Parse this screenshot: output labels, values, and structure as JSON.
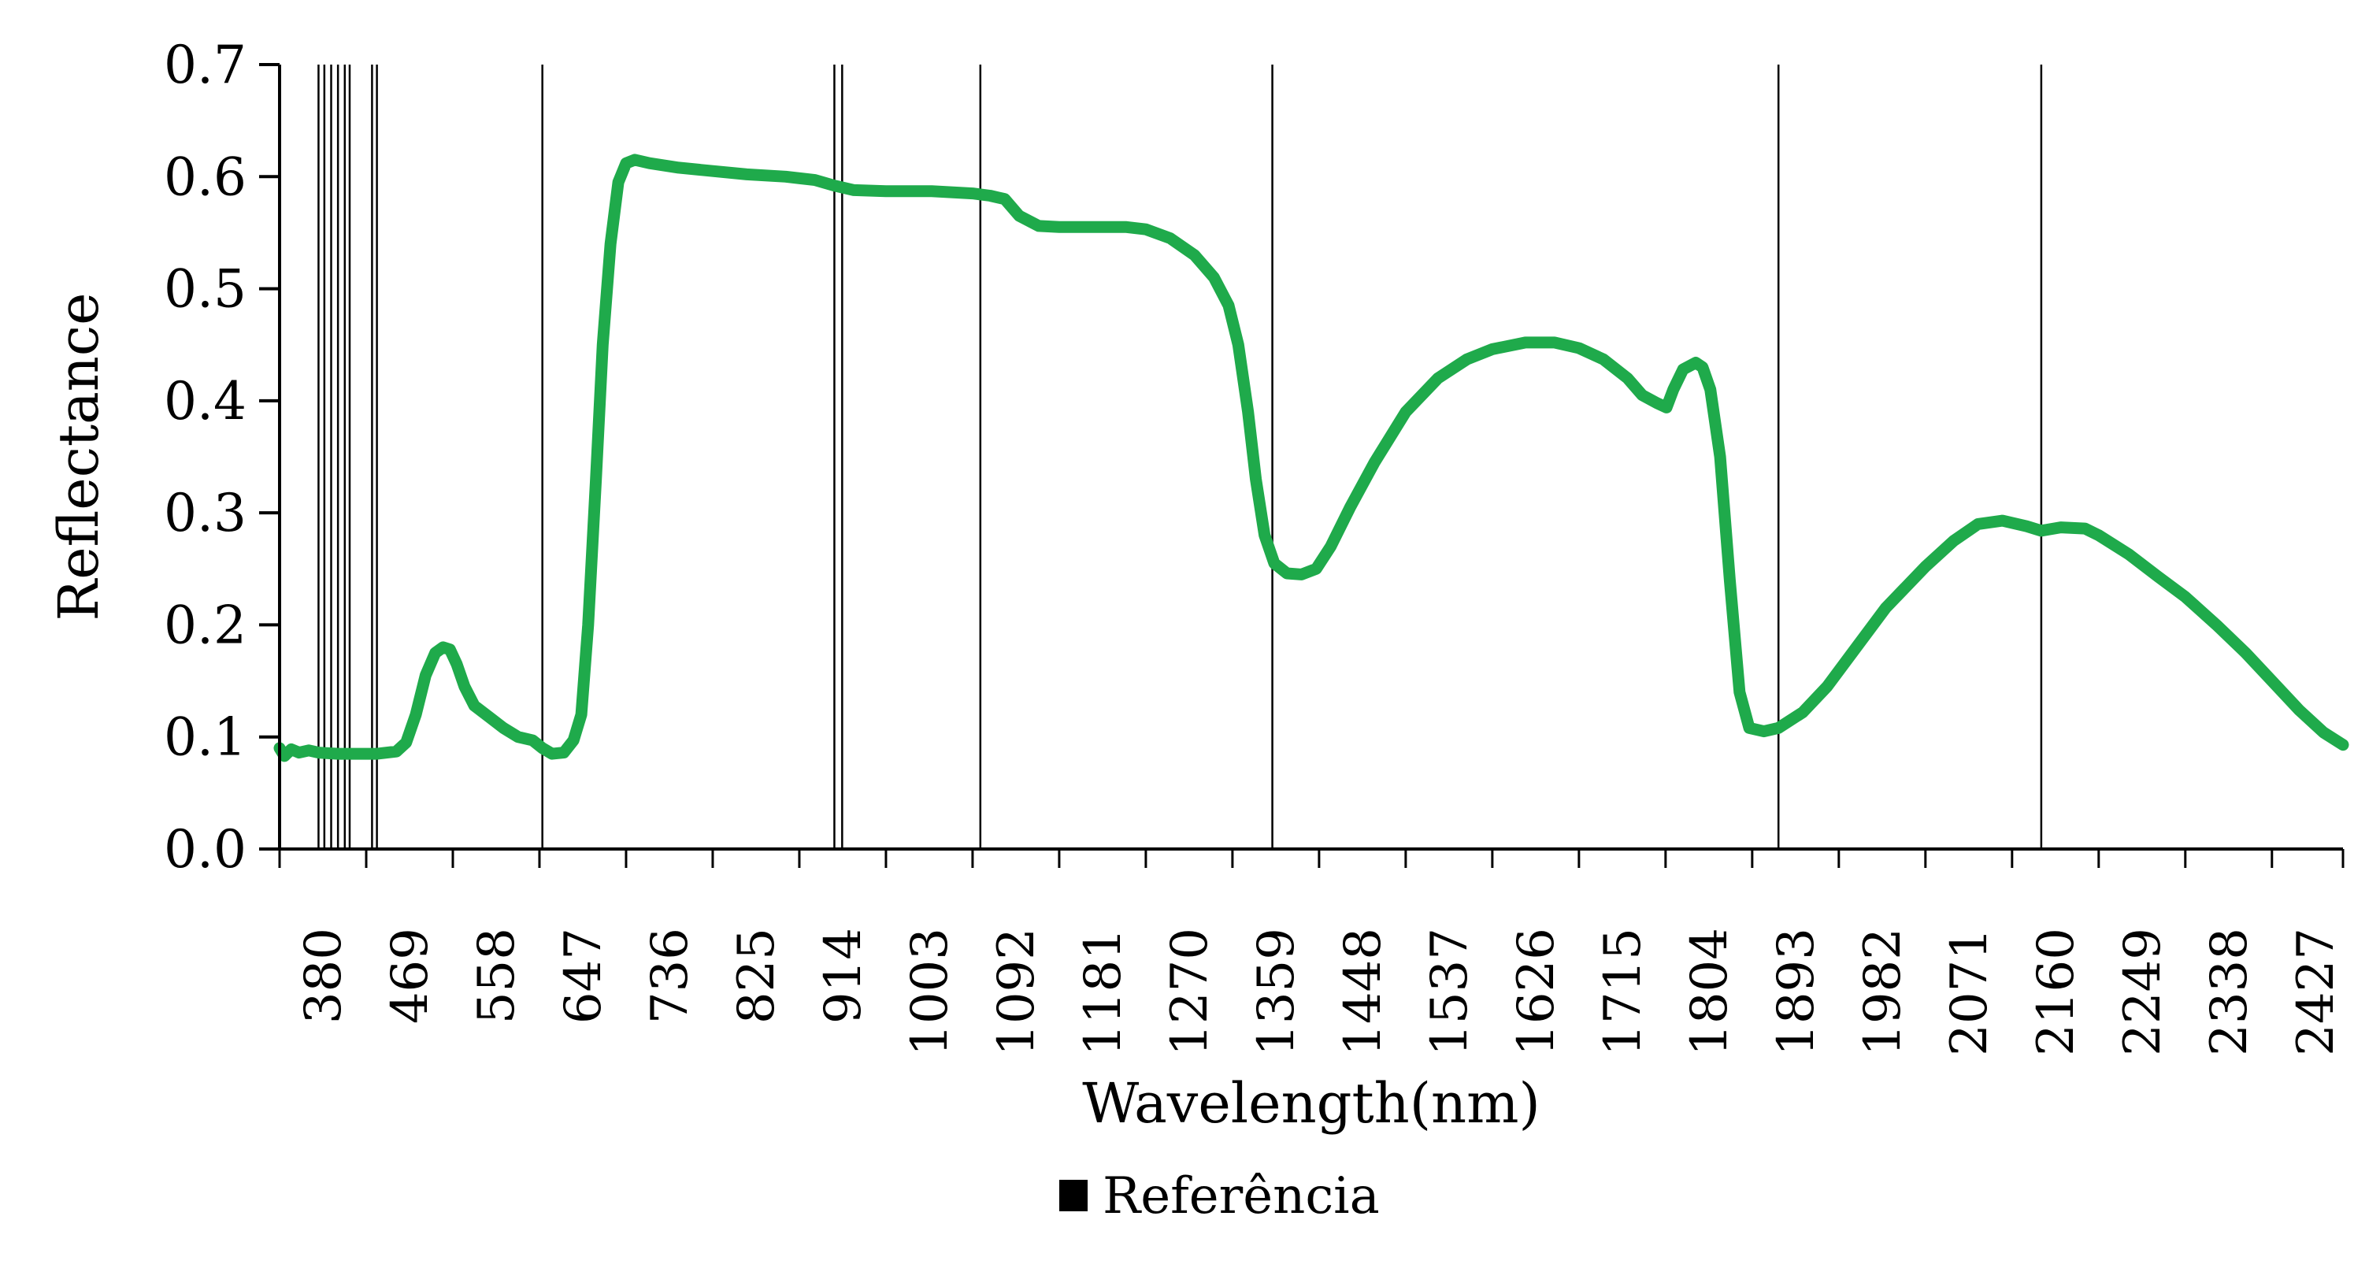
{
  "chart_data": {
    "type": "line",
    "xlabel": "Wavelength(nm)",
    "ylabel": "Reflectance",
    "xlim": [
      380,
      2500
    ],
    "ylim": [
      0.0,
      0.7
    ],
    "x_ticks": [
      380,
      469,
      558,
      647,
      736,
      825,
      914,
      1003,
      1092,
      1181,
      1270,
      1359,
      1448,
      1537,
      1626,
      1715,
      1804,
      1893,
      1982,
      2071,
      2160,
      2249,
      2338,
      2427
    ],
    "y_ticks": [
      "0.0",
      "0.1",
      "0.2",
      "0.3",
      "0.4",
      "0.5",
      "0.6",
      "0.7"
    ],
    "grid": false,
    "legend": {
      "position": "bottom-center",
      "entries": [
        "Referência"
      ]
    },
    "reference_lines": [
      420,
      426,
      433,
      440,
      447,
      452,
      475,
      480,
      650,
      950,
      958,
      1100,
      1400,
      1920,
      2190
    ],
    "series": [
      {
        "color": "#1faa4b",
        "points": [
          [
            380,
            0.09
          ],
          [
            385,
            0.083
          ],
          [
            392,
            0.089
          ],
          [
            400,
            0.086
          ],
          [
            410,
            0.088
          ],
          [
            420,
            0.086
          ],
          [
            440,
            0.085
          ],
          [
            460,
            0.085
          ],
          [
            480,
            0.085
          ],
          [
            500,
            0.087
          ],
          [
            510,
            0.095
          ],
          [
            520,
            0.12
          ],
          [
            530,
            0.155
          ],
          [
            540,
            0.175
          ],
          [
            548,
            0.18
          ],
          [
            555,
            0.178
          ],
          [
            562,
            0.165
          ],
          [
            570,
            0.145
          ],
          [
            580,
            0.128
          ],
          [
            595,
            0.118
          ],
          [
            610,
            0.108
          ],
          [
            625,
            0.1
          ],
          [
            640,
            0.097
          ],
          [
            650,
            0.09
          ],
          [
            660,
            0.085
          ],
          [
            672,
            0.086
          ],
          [
            682,
            0.097
          ],
          [
            690,
            0.12
          ],
          [
            697,
            0.2
          ],
          [
            705,
            0.33
          ],
          [
            712,
            0.45
          ],
          [
            720,
            0.54
          ],
          [
            728,
            0.595
          ],
          [
            736,
            0.612
          ],
          [
            745,
            0.615
          ],
          [
            760,
            0.612
          ],
          [
            790,
            0.608
          ],
          [
            825,
            0.605
          ],
          [
            860,
            0.602
          ],
          [
            900,
            0.6
          ],
          [
            930,
            0.597
          ],
          [
            950,
            0.592
          ],
          [
            970,
            0.588
          ],
          [
            1003,
            0.587
          ],
          [
            1050,
            0.587
          ],
          [
            1092,
            0.585
          ],
          [
            1110,
            0.583
          ],
          [
            1125,
            0.58
          ],
          [
            1140,
            0.565
          ],
          [
            1160,
            0.556
          ],
          [
            1181,
            0.555
          ],
          [
            1210,
            0.555
          ],
          [
            1250,
            0.555
          ],
          [
            1270,
            0.553
          ],
          [
            1295,
            0.545
          ],
          [
            1320,
            0.53
          ],
          [
            1340,
            0.51
          ],
          [
            1355,
            0.485
          ],
          [
            1365,
            0.45
          ],
          [
            1375,
            0.39
          ],
          [
            1383,
            0.33
          ],
          [
            1392,
            0.28
          ],
          [
            1402,
            0.255
          ],
          [
            1415,
            0.246
          ],
          [
            1430,
            0.245
          ],
          [
            1445,
            0.25
          ],
          [
            1460,
            0.27
          ],
          [
            1480,
            0.305
          ],
          [
            1505,
            0.345
          ],
          [
            1537,
            0.39
          ],
          [
            1570,
            0.42
          ],
          [
            1600,
            0.437
          ],
          [
            1626,
            0.446
          ],
          [
            1660,
            0.452
          ],
          [
            1690,
            0.452
          ],
          [
            1715,
            0.447
          ],
          [
            1740,
            0.437
          ],
          [
            1765,
            0.42
          ],
          [
            1780,
            0.405
          ],
          [
            1795,
            0.398
          ],
          [
            1805,
            0.394
          ],
          [
            1812,
            0.41
          ],
          [
            1822,
            0.428
          ],
          [
            1835,
            0.434
          ],
          [
            1842,
            0.43
          ],
          [
            1850,
            0.41
          ],
          [
            1860,
            0.35
          ],
          [
            1870,
            0.24
          ],
          [
            1880,
            0.14
          ],
          [
            1890,
            0.108
          ],
          [
            1905,
            0.105
          ],
          [
            1920,
            0.108
          ],
          [
            1945,
            0.122
          ],
          [
            1970,
            0.145
          ],
          [
            2000,
            0.18
          ],
          [
            2030,
            0.215
          ],
          [
            2071,
            0.252
          ],
          [
            2100,
            0.275
          ],
          [
            2125,
            0.29
          ],
          [
            2150,
            0.293
          ],
          [
            2175,
            0.288
          ],
          [
            2190,
            0.284
          ],
          [
            2210,
            0.287
          ],
          [
            2235,
            0.286
          ],
          [
            2249,
            0.28
          ],
          [
            2280,
            0.263
          ],
          [
            2310,
            0.243
          ],
          [
            2338,
            0.225
          ],
          [
            2370,
            0.2
          ],
          [
            2400,
            0.175
          ],
          [
            2427,
            0.15
          ],
          [
            2455,
            0.124
          ],
          [
            2480,
            0.104
          ],
          [
            2500,
            0.093
          ]
        ]
      }
    ]
  }
}
